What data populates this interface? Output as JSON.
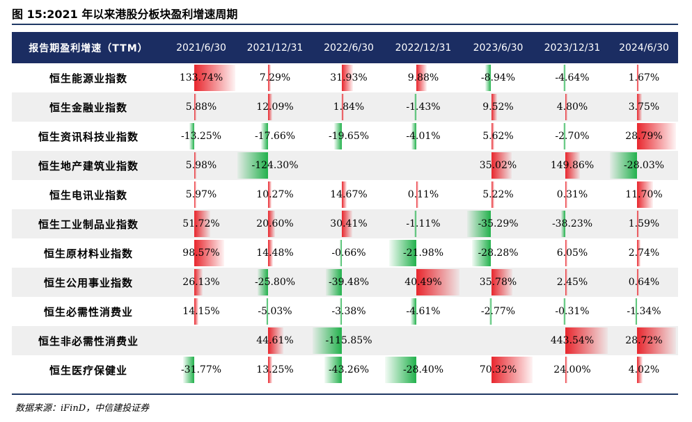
{
  "title": "图 15:2021 年以来港股分板块盈利增速周期",
  "source": "数据来源：iFinD，中信建投证券",
  "colors": {
    "positive": "#e8262d",
    "negative": "#22b14c",
    "header": "#1b2d62"
  },
  "chart_data": {
    "type": "table",
    "header": [
      "报告期盈利增速（TTM）",
      "2021/6/30",
      "2021/12/31",
      "2022/6/30",
      "2022/12/31",
      "2023/6/30",
      "2023/12/31",
      "2024/6/30"
    ],
    "rows": [
      {
        "name": "恒生能源业指数",
        "cells": [
          "133.74%",
          "7.29%",
          "31.93%",
          "9.88%",
          "-8.94%",
          "-4.64%",
          "1.67%"
        ],
        "values": [
          133.74,
          7.29,
          31.93,
          9.88,
          -8.94,
          -4.64,
          1.67
        ]
      },
      {
        "name": "恒生金融业指数",
        "cells": [
          "5.88%",
          "12.09%",
          "1.84%",
          "-1.43%",
          "9.52%",
          "4.80%",
          "3.75%"
        ],
        "values": [
          5.88,
          12.09,
          1.84,
          -1.43,
          9.52,
          4.8,
          3.75
        ]
      },
      {
        "name": "恒生资讯科技业指数",
        "cells": [
          "-13.25%",
          "-17.66%",
          "-19.65%",
          "-4.01%",
          "5.62%",
          "-2.70%",
          "28.79%"
        ],
        "values": [
          -13.25,
          -17.66,
          -19.65,
          -4.01,
          5.62,
          -2.7,
          28.79
        ]
      },
      {
        "name": "恒生地产建筑业指数",
        "cells": [
          "5.98%",
          "-124.30%",
          "",
          "",
          "35.02%",
          "149.86%",
          "-28.03%"
        ],
        "values": [
          5.98,
          -124.3,
          null,
          null,
          35.02,
          149.86,
          -28.03
        ]
      },
      {
        "name": "恒生电讯业指数",
        "cells": [
          "5.97%",
          "10.27%",
          "14.67%",
          "0.11%",
          "5.22%",
          "0.31%",
          "11.70%"
        ],
        "values": [
          5.97,
          10.27,
          14.67,
          0.11,
          5.22,
          0.31,
          11.7
        ]
      },
      {
        "name": "恒生工业制品业指数",
        "cells": [
          "51.72%",
          "20.60%",
          "30.41%",
          "-1.11%",
          "-35.29%",
          "-38.23%",
          "1.59%"
        ],
        "values": [
          51.72,
          20.6,
          30.41,
          -1.11,
          -35.29,
          -38.23,
          1.59
        ]
      },
      {
        "name": "恒生原材料业指数",
        "cells": [
          "98.57%",
          "14.48%",
          "-0.66%",
          "-21.98%",
          "-28.28%",
          "6.05%",
          "2.74%"
        ],
        "values": [
          98.57,
          14.48,
          -0.66,
          -21.98,
          -28.28,
          6.05,
          2.74
        ]
      },
      {
        "name": "恒生公用事业指数",
        "cells": [
          "26.13%",
          "-25.80%",
          "-39.48%",
          "40.49%",
          "35.78%",
          "2.45%",
          "0.64%"
        ],
        "values": [
          26.13,
          -25.8,
          -39.48,
          40.49,
          35.78,
          2.45,
          0.64
        ]
      },
      {
        "name": "恒生必需性消费业",
        "cells": [
          "14.15%",
          "-5.03%",
          "-3.38%",
          "-4.61%",
          "-2.77%",
          "-0.31%",
          "-1.34%"
        ],
        "values": [
          14.15,
          -5.03,
          -3.38,
          -4.61,
          -2.77,
          -0.31,
          -1.34
        ]
      },
      {
        "name": "恒生非必需性消费业",
        "cells": [
          "",
          "44.61%",
          "-115.85%",
          "",
          "",
          "443.54%",
          "28.72%"
        ],
        "values": [
          null,
          44.61,
          -115.85,
          null,
          null,
          443.54,
          28.72
        ]
      },
      {
        "name": "恒生医疗保健业",
        "cells": [
          "-31.77%",
          "13.25%",
          "-43.26%",
          "-28.40%",
          "70.32%",
          "24.00%",
          "4.02%"
        ],
        "values": [
          -31.77,
          13.25,
          -43.26,
          -28.4,
          70.32,
          24.0,
          4.02
        ]
      }
    ]
  }
}
